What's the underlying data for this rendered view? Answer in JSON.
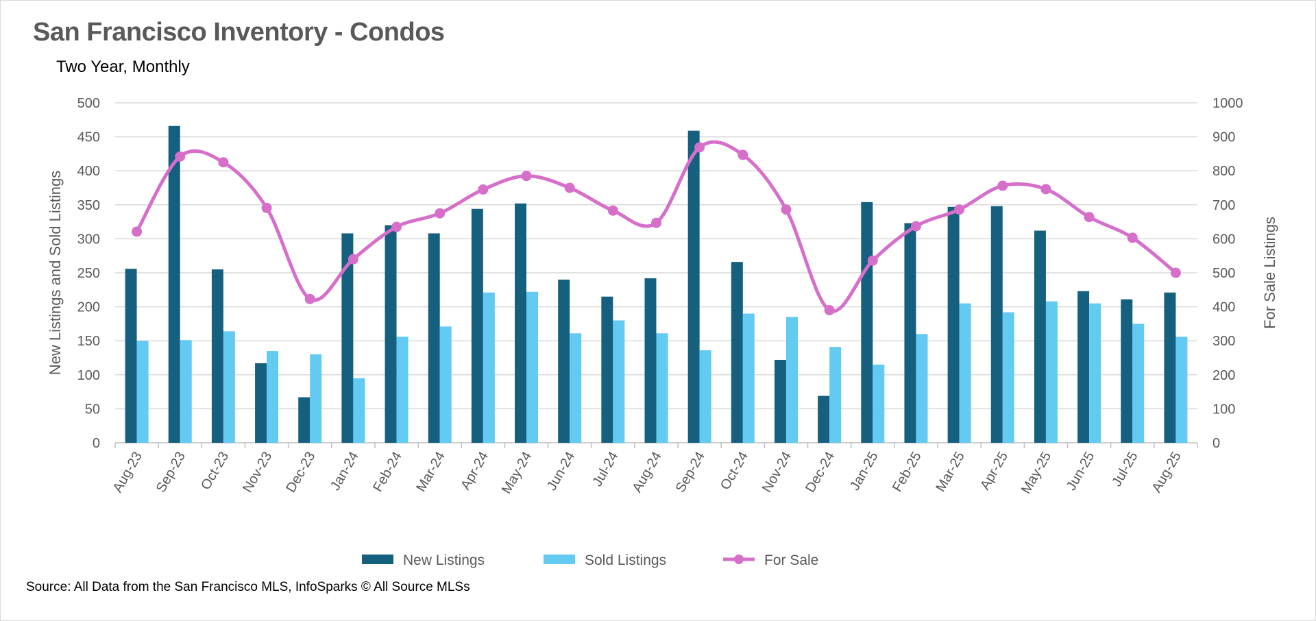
{
  "chart_data": {
    "type": "bar+line",
    "title": "San Francisco Inventory - Condos",
    "subtitle": "Two Year, Monthly",
    "ylabel": "New Listings and Sold Listings",
    "y2label": "For Sale Listings",
    "ylim": [
      0,
      500
    ],
    "y2lim": [
      0,
      1000
    ],
    "yticks": [
      0,
      50,
      100,
      150,
      200,
      250,
      300,
      350,
      400,
      450,
      500
    ],
    "y2ticks": [
      0,
      100,
      200,
      300,
      400,
      500,
      600,
      700,
      800,
      900,
      1000
    ],
    "grid": true,
    "legend_position": "bottom",
    "categories": [
      "Aug-23",
      "Sep-23",
      "Oct-23",
      "Nov-23",
      "Dec-23",
      "Jan-24",
      "Feb-24",
      "Mar-24",
      "Apr-24",
      "May-24",
      "Jun-24",
      "Jul-24",
      "Aug-24",
      "Sep-24",
      "Oct-24",
      "Nov-24",
      "Dec-24",
      "Jan-25",
      "Feb-25",
      "Mar-25",
      "Apr-25",
      "May-25",
      "Jun-25",
      "Jul-25",
      "Aug-25"
    ],
    "series": [
      {
        "name": "New Listings",
        "type": "bar",
        "axis": "left",
        "color": "#16607f",
        "values": [
          256,
          466,
          255,
          117,
          67,
          308,
          320,
          308,
          344,
          352,
          240,
          215,
          242,
          459,
          266,
          122,
          69,
          354,
          323,
          347,
          348,
          312,
          223,
          211,
          221
        ]
      },
      {
        "name": "Sold Listings",
        "type": "bar",
        "axis": "left",
        "color": "#63caf2",
        "values": [
          150,
          151,
          164,
          135,
          130,
          95,
          156,
          171,
          221,
          222,
          161,
          180,
          161,
          136,
          190,
          185,
          141,
          115,
          160,
          205,
          192,
          208,
          205,
          175,
          156
        ]
      },
      {
        "name": "For Sale",
        "type": "line",
        "axis": "right",
        "smooth": true,
        "markers": true,
        "color": "#d66fca",
        "values": [
          621,
          842,
          825,
          691,
          423,
          540,
          635,
          675,
          745,
          785,
          750,
          683,
          647,
          869,
          847,
          686,
          390,
          536,
          637,
          686,
          756,
          746,
          664,
          603,
          500
        ]
      }
    ]
  },
  "source": "Source: All Data from the San Francisco MLS, InfoSparks © All Source MLSs"
}
